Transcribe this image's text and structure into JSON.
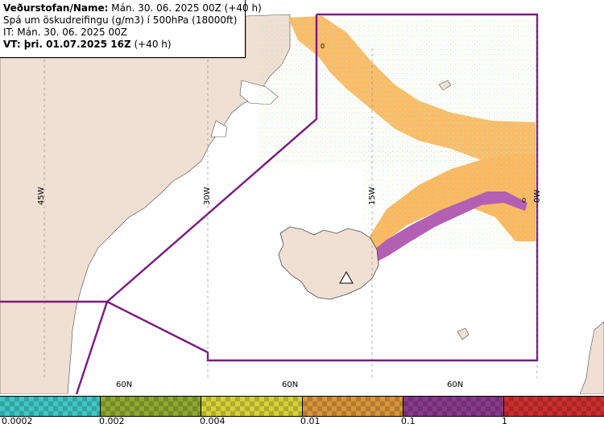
{
  "header": {
    "line1_label": "Veðurstofan/Name:",
    "line1_value": " Mán. 30. 06. 2025 00Z (+40 h)",
    "line2": "Spá um öskudreifingu (g/m3) í 500hPa (18000ft)",
    "line3": "IT: Mán. 30. 06. 2025 00Z",
    "line4_label": "VT: þri. 01.07.2025 16Z",
    "line4_value": " (+40 h)"
  },
  "longitudes": [
    "45W",
    "30W",
    "15W",
    "0W"
  ],
  "latitudes": [
    "60N",
    "60N",
    "60N"
  ],
  "contour_labels": [
    "0",
    "0"
  ],
  "legend": {
    "ticks": [
      "0.0002",
      "0.002",
      "0.004",
      "0.01",
      "0.1",
      "1"
    ],
    "colors": [
      "#3fc7c7",
      "#8fa831",
      "#d7d13a",
      "#d9953a",
      "#8a3a8c",
      "#cc2e2e"
    ]
  },
  "map_colors": {
    "land": "#f0e0d4",
    "sea": "#ffffff",
    "ash_low": "#fbb860",
    "ash_high": "#b35fb3",
    "sector_line": "#7a1a80"
  }
}
